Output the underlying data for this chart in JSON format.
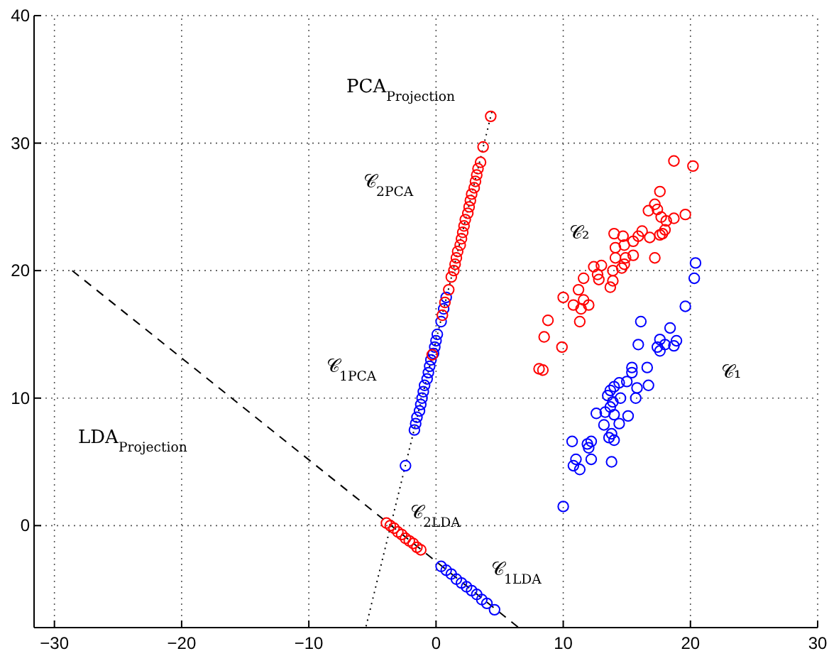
{
  "chart_data": {
    "type": "scatter",
    "xlim": [
      -31.6,
      30
    ],
    "ylim": [
      -8,
      40
    ],
    "xticks": [
      -30,
      -20,
      -10,
      0,
      10,
      20,
      30
    ],
    "yticks": [
      0,
      10,
      20,
      30,
      40
    ],
    "grid": true,
    "marker": "circle",
    "series": [
      {
        "type": "line",
        "color": "#000000",
        "line_style": "dashed",
        "marker": "none",
        "x": [
          -28.6,
          6.5
        ],
        "values": [
          20,
          -8
        ]
      },
      {
        "type": "line",
        "color": "#000000",
        "line_style": "dotted",
        "marker": "none",
        "x": [
          -5.5,
          4.4
        ],
        "values": [
          -7.9,
          32.5
        ]
      },
      {
        "color": "#0000ff",
        "x": [
          -2.4,
          -1.7,
          -1.6,
          -1.5,
          -1.3,
          -1.2,
          -1.1,
          -1.0,
          -0.9,
          -0.7,
          -0.6,
          -0.5,
          -0.4,
          -0.2,
          -0.1,
          0.0,
          0.1,
          0.4,
          0.6,
          0.8
        ],
        "values": [
          4.7,
          7.5,
          8.0,
          8.5,
          9.0,
          9.5,
          10.0,
          10.5,
          11.0,
          11.5,
          12.0,
          12.5,
          13.0,
          13.5,
          14.0,
          14.5,
          15.0,
          16.0,
          17.0,
          17.9
        ]
      },
      {
        "color": "#ff0000",
        "x": [
          -0.3,
          0.5,
          0.7,
          1.0,
          1.2,
          1.4,
          1.5,
          1.6,
          1.7,
          1.9,
          2.0,
          2.1,
          2.2,
          2.3,
          2.5,
          2.6,
          2.7,
          2.8,
          3.0,
          3.1,
          3.2,
          3.3,
          3.5,
          3.7,
          4.3
        ],
        "values": [
          13.4,
          16.5,
          17.5,
          18.5,
          19.5,
          20.0,
          20.5,
          21.0,
          21.5,
          22.0,
          22.5,
          23.0,
          23.5,
          24.0,
          24.5,
          25.0,
          25.5,
          26.0,
          26.5,
          27.0,
          27.5,
          28.0,
          28.5,
          29.7,
          32.1
        ]
      },
      {
        "color": "#0000ff",
        "x": [
          0.4,
          0.8,
          1.2,
          1.6,
          2.0,
          2.4,
          2.8,
          3.2,
          3.6,
          4.0,
          4.6
        ],
        "values": [
          -3.2,
          -3.5,
          -3.8,
          -4.2,
          -4.5,
          -4.8,
          -5.1,
          -5.4,
          -5.8,
          -6.1,
          -6.6
        ]
      },
      {
        "color": "#ff0000",
        "x": [
          -3.9,
          -3.6,
          -3.3,
          -3.0,
          -2.7,
          -2.4,
          -2.1,
          -1.8,
          -1.5,
          -1.2
        ],
        "values": [
          0.2,
          0.0,
          -0.2,
          -0.5,
          -0.7,
          -1.0,
          -1.2,
          -1.4,
          -1.7,
          -1.9
        ]
      },
      {
        "color": "#0000ff",
        "x": [
          20.4,
          20.3,
          19.6,
          16.1,
          15.9,
          18.4,
          17.6,
          18.0,
          18.9,
          17.4,
          17.6,
          18.7,
          15.4,
          16.6,
          15.4,
          14.4,
          15.0,
          14.0,
          13.7,
          13.5,
          15.8,
          16.7,
          14.5,
          13.9,
          15.7,
          13.7,
          13.3,
          12.6,
          14.0,
          15.1,
          13.2,
          14.4,
          13.8,
          13.6,
          14.0,
          10.7,
          11.9,
          12.2,
          12.0,
          11.0,
          10.8,
          11.3,
          12.2,
          13.8,
          10.0
        ],
        "values": [
          20.6,
          19.4,
          17.2,
          16.0,
          14.2,
          15.5,
          14.6,
          14.2,
          14.5,
          14.0,
          13.7,
          14.1,
          12.4,
          12.4,
          12.0,
          11.2,
          11.3,
          10.9,
          10.6,
          10.2,
          10.8,
          11.0,
          10.0,
          9.7,
          10.0,
          9.3,
          8.9,
          8.8,
          8.7,
          8.6,
          7.9,
          8.0,
          7.2,
          6.9,
          6.7,
          6.6,
          6.4,
          6.6,
          6.1,
          5.2,
          4.7,
          4.4,
          5.2,
          5.0,
          1.5
        ]
      },
      {
        "color": "#ff0000",
        "x": [
          18.7,
          20.2,
          17.6,
          17.2,
          16.7,
          17.4,
          17.7,
          18.1,
          19.6,
          18.7,
          18.0,
          17.6,
          16.8,
          16.2,
          15.9,
          17.8,
          14.0,
          14.7,
          15.5,
          14.8,
          14.1,
          15.5,
          14.9,
          14.1,
          17.2,
          14.8,
          14.6,
          13.9,
          13.0,
          12.4,
          12.7,
          11.6,
          12.8,
          13.9,
          13.7,
          11.2,
          10.0,
          11.6,
          12.0,
          10.8,
          11.4,
          11.3,
          8.8,
          8.5,
          9.9,
          8.1,
          8.4
        ],
        "values": [
          28.6,
          28.2,
          26.2,
          25.2,
          24.7,
          24.8,
          24.2,
          23.9,
          24.4,
          24.1,
          23.2,
          22.8,
          22.6,
          23.1,
          22.7,
          22.9,
          22.9,
          22.7,
          22.3,
          22.0,
          21.8,
          21.2,
          21.0,
          21.0,
          21.0,
          20.5,
          20.2,
          20.0,
          20.4,
          20.3,
          19.7,
          19.4,
          19.3,
          19.2,
          18.7,
          18.5,
          17.9,
          17.7,
          17.3,
          17.3,
          17.0,
          16.0,
          16.1,
          14.8,
          14.0,
          12.3,
          12.2
        ]
      }
    ],
    "annotations": [
      "PCA$_{Projection}$",
      "LDA$_{Projection}$",
      "𝒞$_{2PCA}$",
      "𝒞$_{1PCA}$",
      "𝒞$_{2LDA}$",
      "𝒞$_{1LDA}$",
      "𝒞₂",
      "𝒞₁"
    ]
  }
}
